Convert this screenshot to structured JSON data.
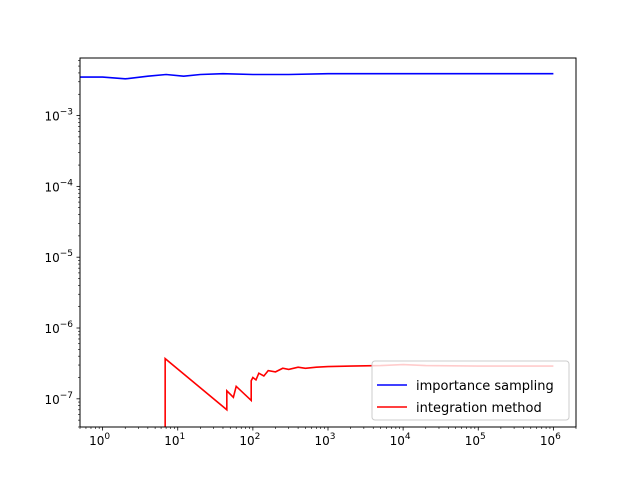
{
  "chart_data": {
    "type": "line",
    "xscale": "log",
    "yscale": "log",
    "xlim": [
      0.5,
      2000000
    ],
    "ylim": [
      4e-08,
      0.0065
    ],
    "grid": false,
    "legend_position": "lower-right",
    "x_ticks": [
      {
        "value": 1,
        "base": "10",
        "exp": "0"
      },
      {
        "value": 10,
        "base": "10",
        "exp": "1"
      },
      {
        "value": 100,
        "base": "10",
        "exp": "2"
      },
      {
        "value": 1000,
        "base": "10",
        "exp": "3"
      },
      {
        "value": 10000,
        "base": "10",
        "exp": "4"
      },
      {
        "value": 100000,
        "base": "10",
        "exp": "5"
      },
      {
        "value": 1000000,
        "base": "10",
        "exp": "6"
      }
    ],
    "y_ticks": [
      {
        "value": 1e-07,
        "base": "10",
        "exp": "−7"
      },
      {
        "value": 1e-06,
        "base": "10",
        "exp": "−6"
      },
      {
        "value": 1e-05,
        "base": "10",
        "exp": "−5"
      },
      {
        "value": 0.0001,
        "base": "10",
        "exp": "−4"
      },
      {
        "value": 0.001,
        "base": "10",
        "exp": "−3"
      }
    ],
    "series": [
      {
        "name": "importance sampling",
        "color": "#0000ff",
        "points": [
          [
            0.5,
            0.0035
          ],
          [
            1,
            0.0035
          ],
          [
            2,
            0.0033
          ],
          [
            4,
            0.0036
          ],
          [
            7,
            0.0038
          ],
          [
            12,
            0.0036
          ],
          [
            20,
            0.0038
          ],
          [
            40,
            0.0039
          ],
          [
            100,
            0.0038
          ],
          [
            300,
            0.0038
          ],
          [
            1000,
            0.0039
          ],
          [
            10000,
            0.0039
          ],
          [
            100000,
            0.0039
          ],
          [
            1000000,
            0.0039
          ]
        ]
      },
      {
        "name": "integration method",
        "color": "#ff0000",
        "points": [
          [
            6.8,
            3e-08
          ],
          [
            6.8,
            3.7e-07
          ],
          [
            45,
            7e-08
          ],
          [
            45,
            1.3e-07
          ],
          [
            55,
            1.05e-07
          ],
          [
            60,
            1.5e-07
          ],
          [
            95,
            9.5e-08
          ],
          [
            95,
            1.8e-07
          ],
          [
            100,
            2e-07
          ],
          [
            110,
            1.85e-07
          ],
          [
            120,
            2.3e-07
          ],
          [
            140,
            2.1e-07
          ],
          [
            160,
            2.5e-07
          ],
          [
            200,
            2.4e-07
          ],
          [
            250,
            2.7e-07
          ],
          [
            300,
            2.6e-07
          ],
          [
            400,
            2.8e-07
          ],
          [
            500,
            2.7e-07
          ],
          [
            700,
            2.8e-07
          ],
          [
            1000,
            2.85e-07
          ],
          [
            2000,
            2.9e-07
          ],
          [
            5000,
            2.95e-07
          ],
          [
            10000,
            3.05e-07
          ],
          [
            20000,
            2.95e-07
          ],
          [
            100000,
            2.9e-07
          ],
          [
            1000000,
            2.9e-07
          ]
        ]
      }
    ]
  }
}
